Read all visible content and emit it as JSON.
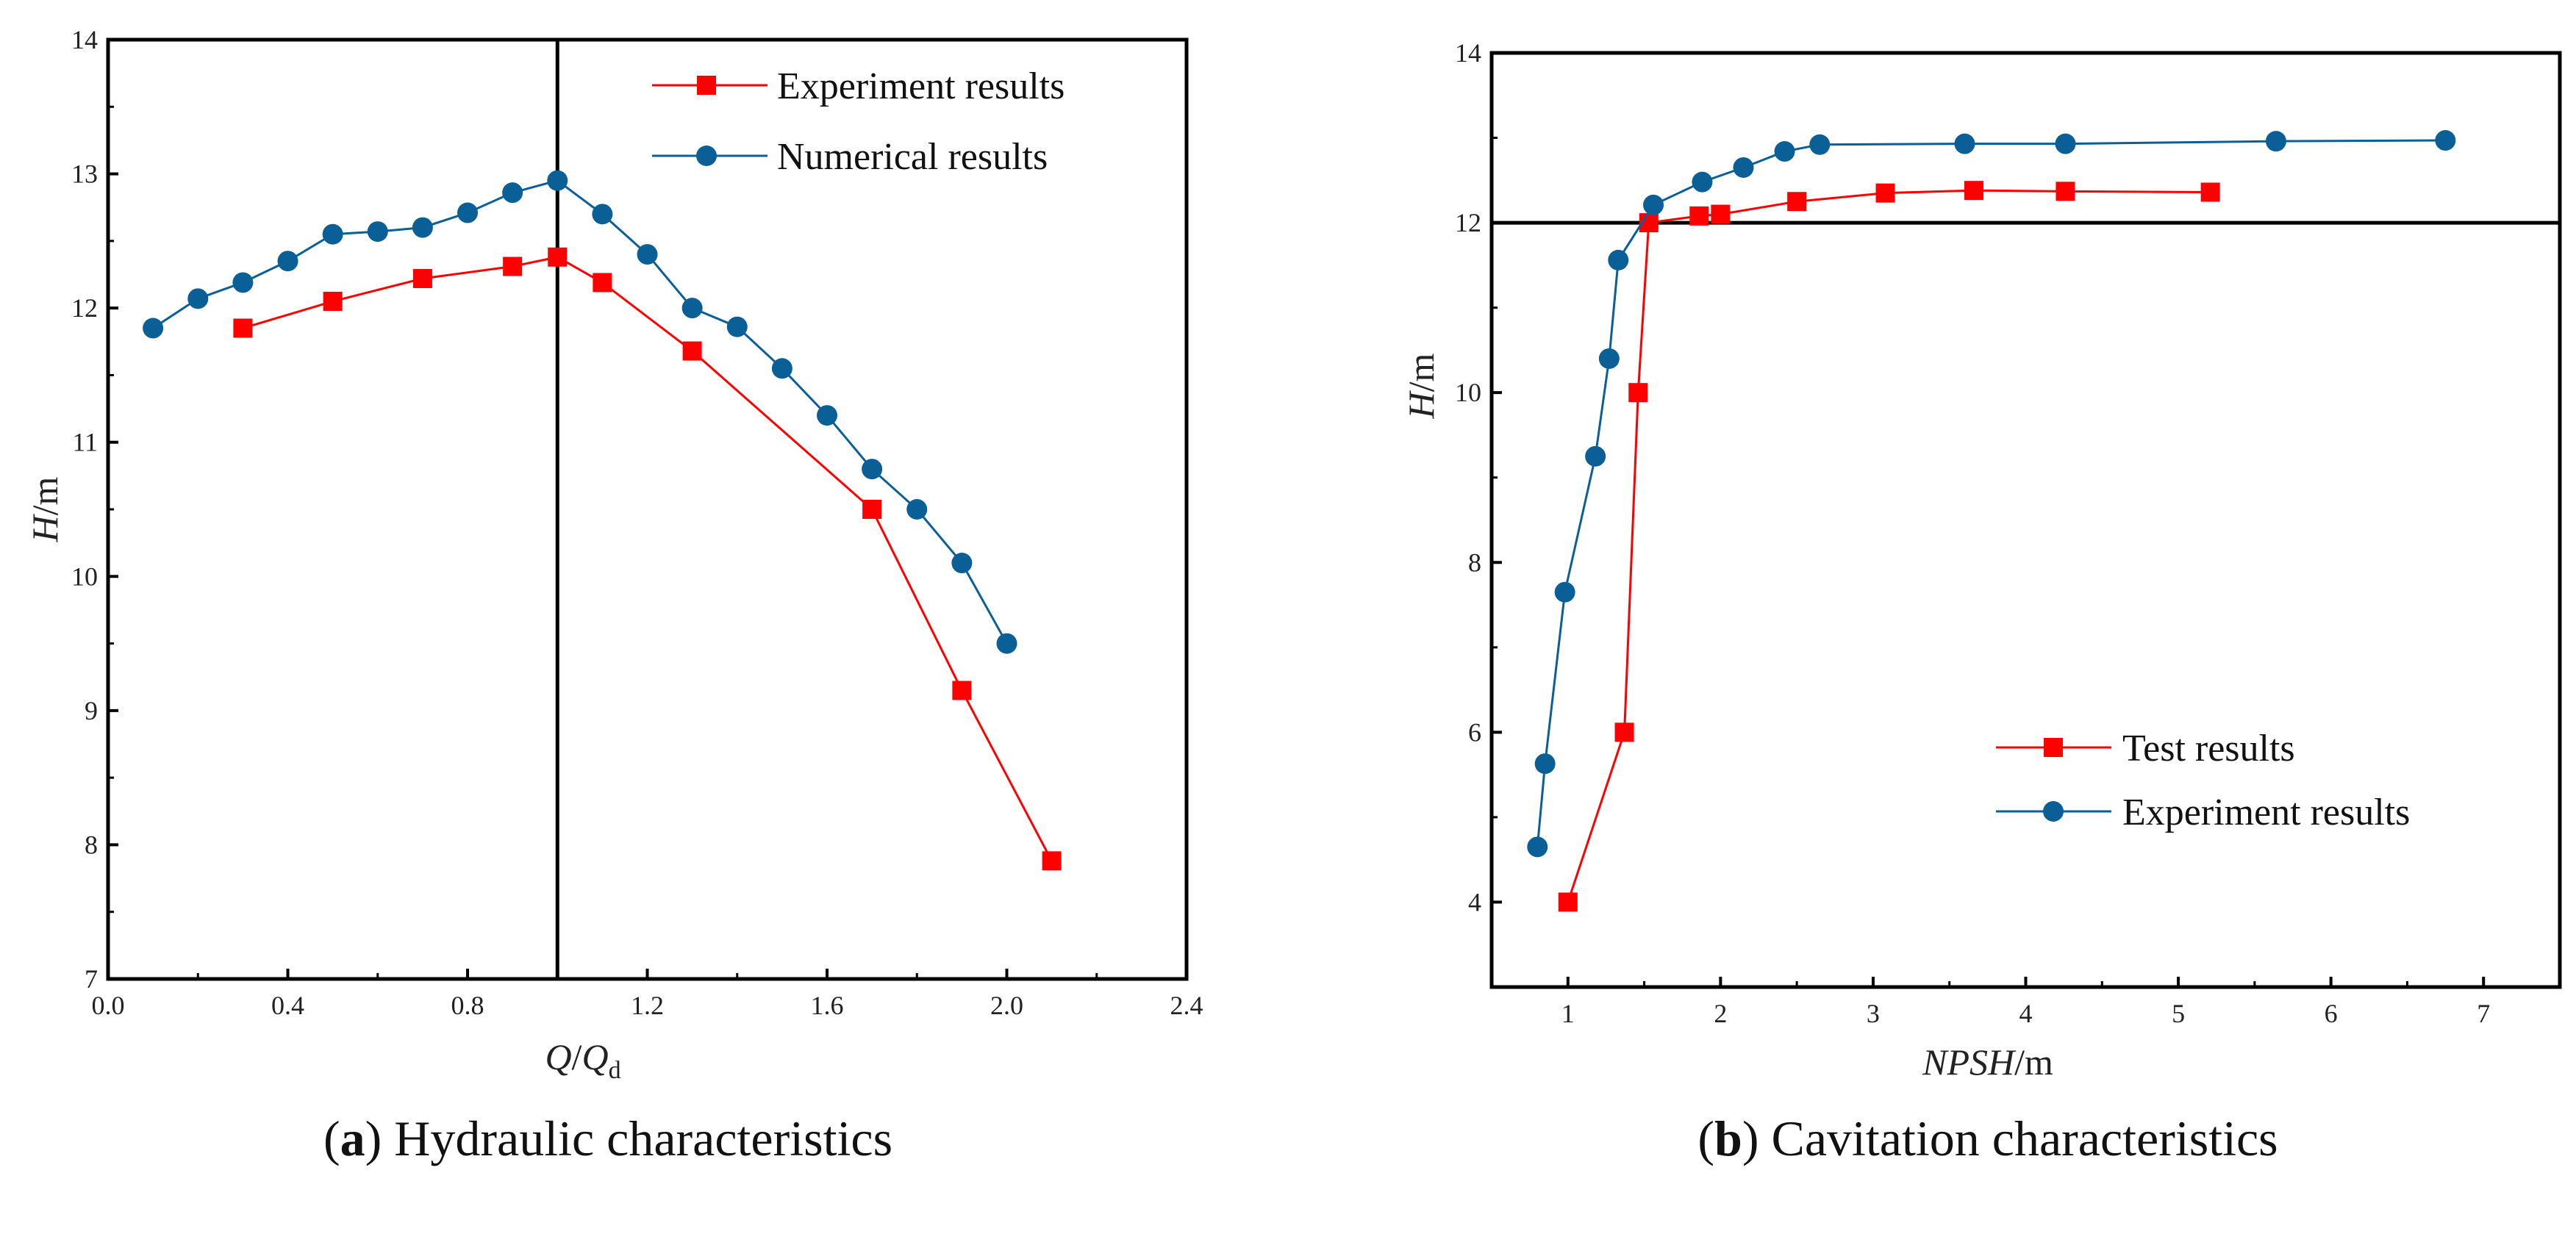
{
  "chart_data": [
    {
      "type": "line",
      "xlabel_parts": [
        "Q",
        "/",
        "Q",
        "d"
      ],
      "ylabel_parts": [
        "H",
        "/m"
      ],
      "xlim": [
        0.0,
        2.4
      ],
      "ylim": [
        7,
        14
      ],
      "xticks": [
        "0.0",
        "0.4",
        "0.8",
        "1.2",
        "1.6",
        "2.0",
        "2.4"
      ],
      "yticks": [
        "7",
        "8",
        "9",
        "10",
        "11",
        "12",
        "13",
        "14"
      ],
      "reference_line": {
        "orientation": "vertical",
        "value": 1.0
      },
      "legend_position": "top-right",
      "caption_letter": "a",
      "caption_text": " Hydraulic characteristics",
      "series": [
        {
          "name": "Experiment results",
          "marker": "square",
          "color": "#ff0000",
          "x": [
            0.3,
            0.5,
            0.7,
            0.9,
            1.0,
            1.1,
            1.3,
            1.7,
            1.9,
            2.1
          ],
          "y": [
            11.85,
            12.05,
            12.22,
            12.31,
            12.38,
            12.19,
            11.68,
            10.5,
            9.15,
            7.88
          ]
        },
        {
          "name": "Numerical results",
          "marker": "circle",
          "color": "#0b5f97",
          "x": [
            0.1,
            0.2,
            0.3,
            0.4,
            0.5,
            0.6,
            0.7,
            0.8,
            0.9,
            1.0,
            1.1,
            1.2,
            1.3,
            1.4,
            1.5,
            1.6,
            1.7,
            1.8,
            1.9,
            2.0
          ],
          "y": [
            11.85,
            12.07,
            12.19,
            12.35,
            12.55,
            12.57,
            12.6,
            12.71,
            12.86,
            12.95,
            12.7,
            12.4,
            12.0,
            11.86,
            11.55,
            11.2,
            10.8,
            10.5,
            10.1,
            9.5
          ]
        }
      ]
    },
    {
      "type": "line",
      "xlabel_parts": [
        "NPSH",
        "/m"
      ],
      "ylabel_parts": [
        "H",
        "/m"
      ],
      "xlim": [
        0.5,
        7.5
      ],
      "ylim": [
        3,
        14
      ],
      "xticks": [
        "1",
        "2",
        "3",
        "4",
        "5",
        "6",
        "7"
      ],
      "yticks": [
        "4",
        "6",
        "8",
        "10",
        "12",
        "14"
      ],
      "reference_line": {
        "orientation": "horizontal",
        "value": 12
      },
      "legend_position": "bottom-right",
      "caption_letter": "b",
      "caption_text": " Cavitation characteristics",
      "series": [
        {
          "name": "Test results",
          "marker": "square",
          "color": "#ff0000",
          "x": [
            1.0,
            1.37,
            1.46,
            1.53,
            1.86,
            2.0,
            2.5,
            3.08,
            3.66,
            4.26,
            5.21
          ],
          "y": [
            4.0,
            6.0,
            10.0,
            12.0,
            12.08,
            12.1,
            12.25,
            12.35,
            12.38,
            12.37,
            12.36
          ]
        },
        {
          "name": "Experiment results",
          "marker": "circle",
          "color": "#0b5f97",
          "x": [
            0.8,
            0.85,
            0.98,
            1.18,
            1.27,
            1.33,
            1.56,
            1.88,
            2.15,
            2.42,
            2.65,
            3.6,
            4.26,
            5.64,
            6.75
          ],
          "y": [
            4.65,
            5.63,
            7.65,
            9.25,
            10.4,
            11.56,
            12.21,
            12.48,
            12.65,
            12.84,
            12.92,
            12.93,
            12.93,
            12.96,
            12.97
          ]
        }
      ]
    }
  ]
}
